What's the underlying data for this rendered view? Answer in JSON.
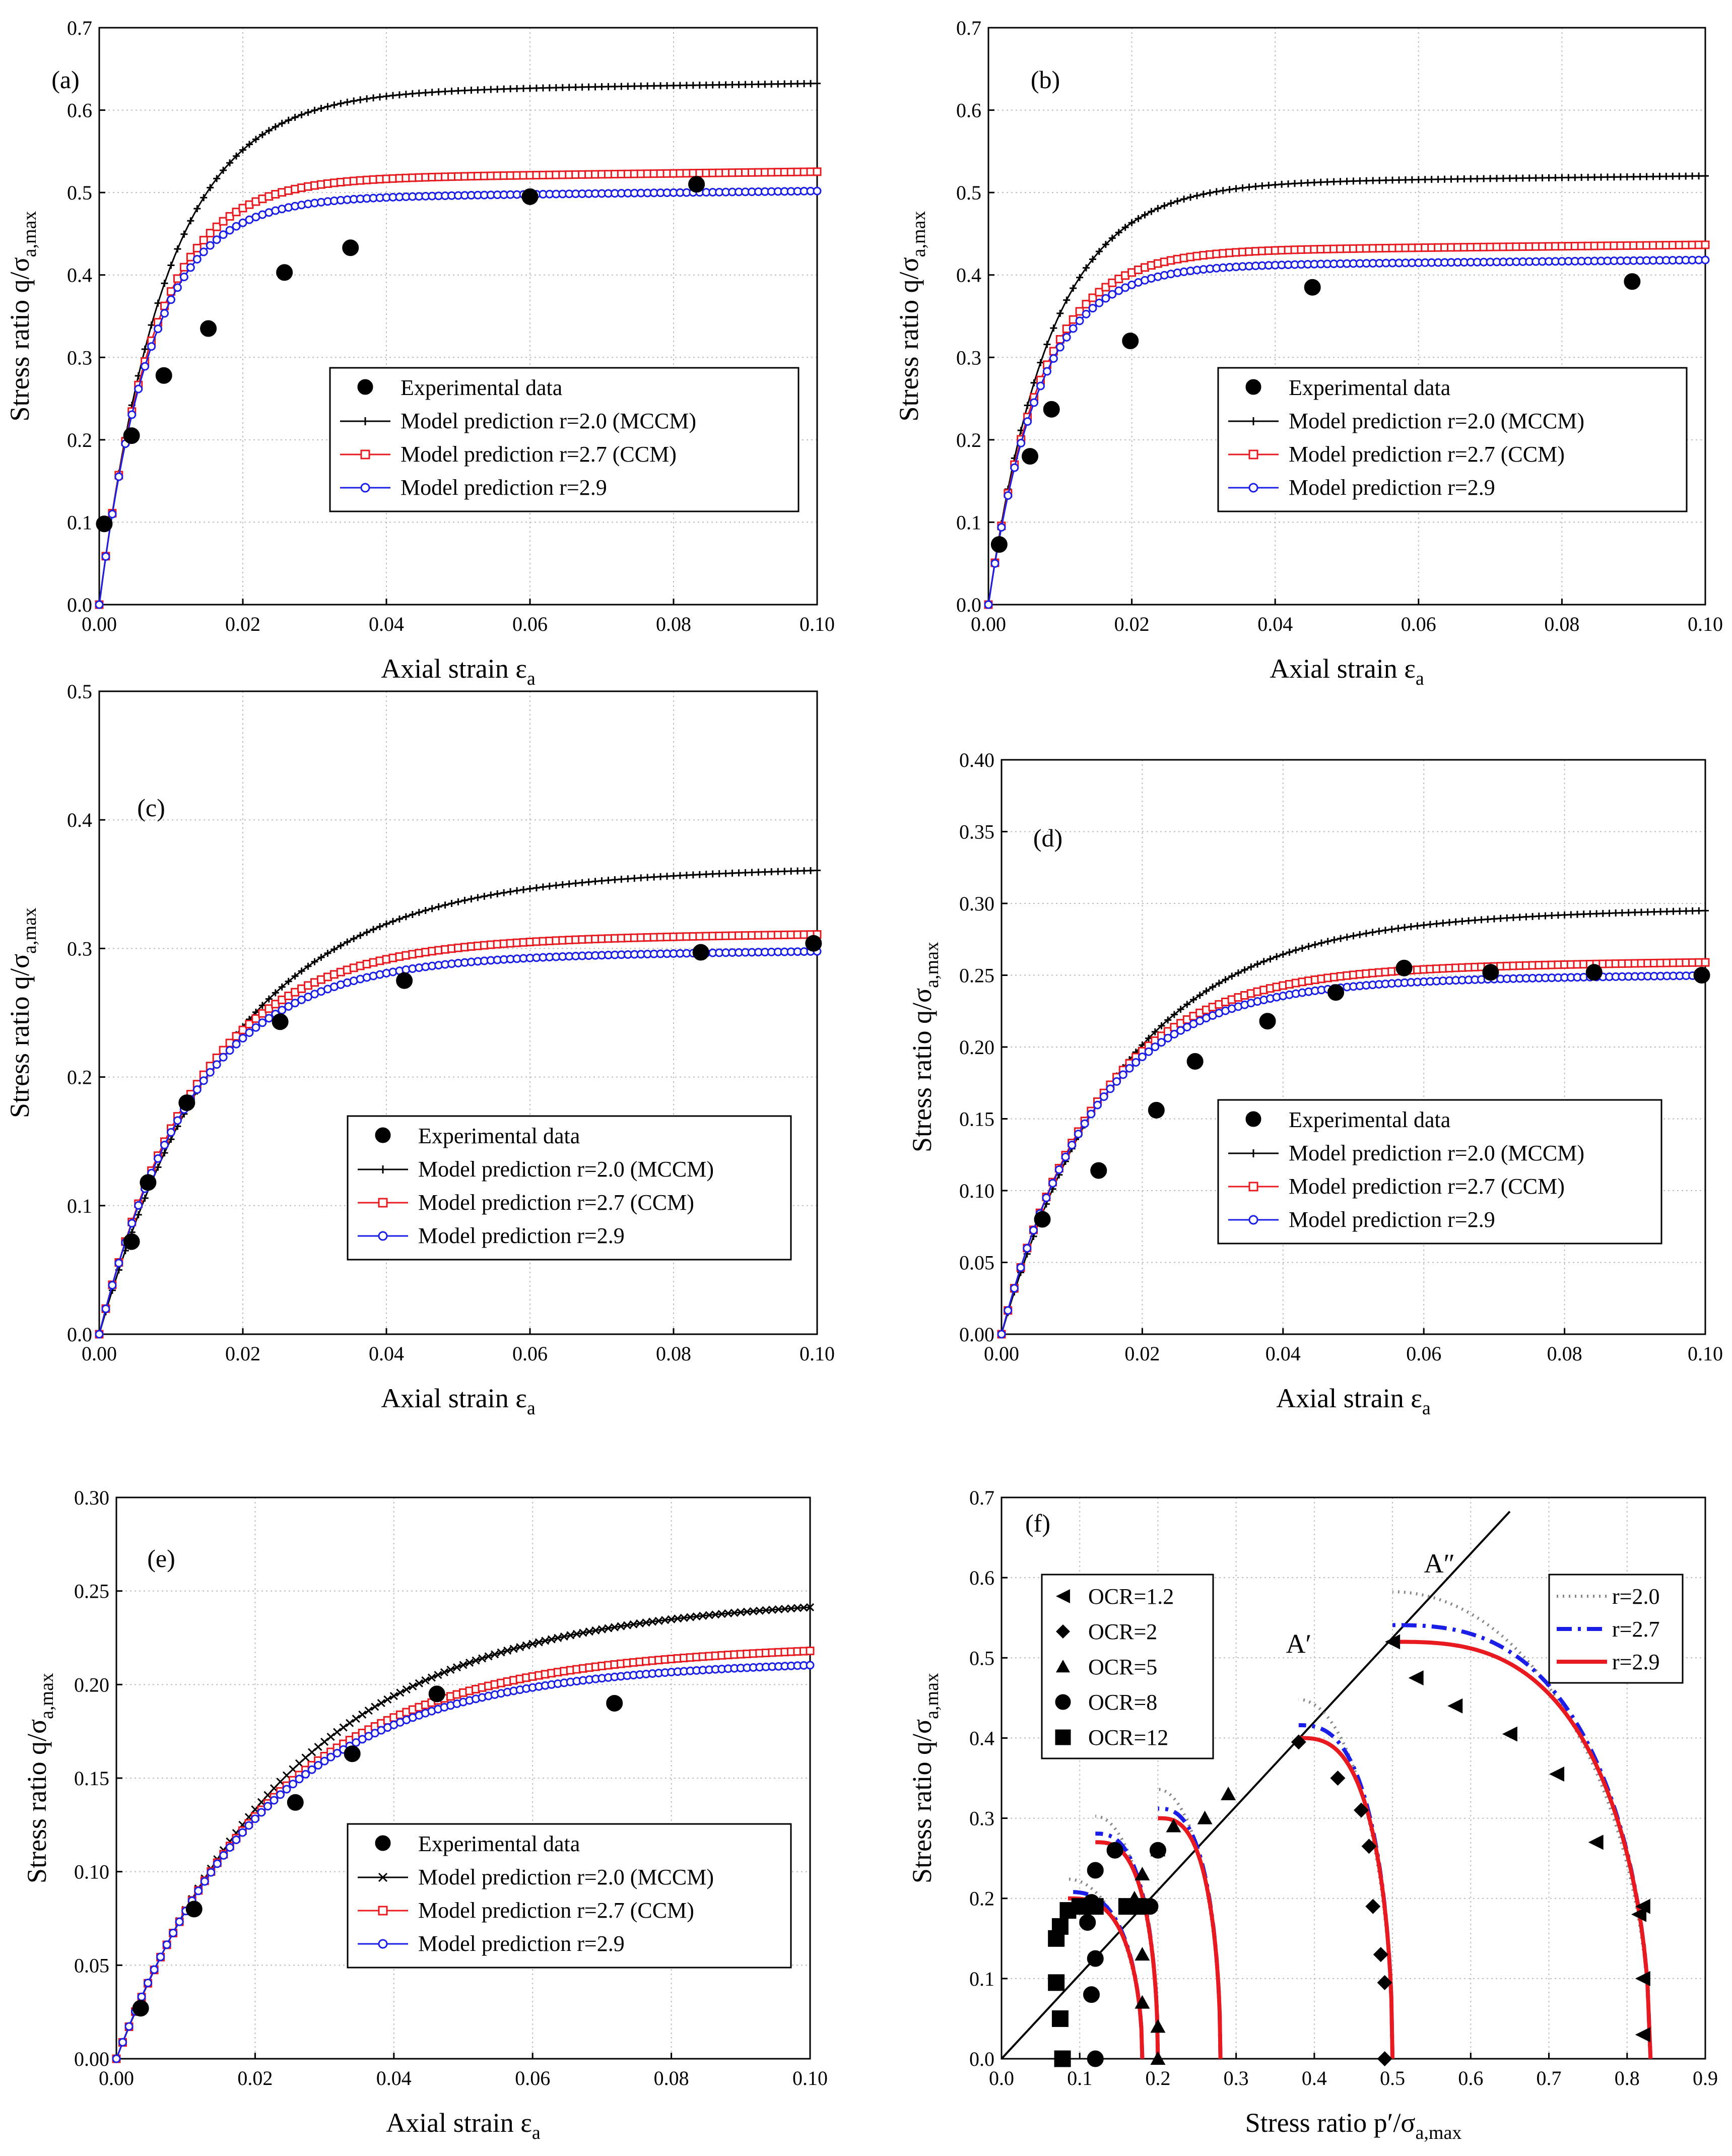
{
  "chart_data": [
    {
      "id": "a",
      "type": "line",
      "panel_label": "(a)",
      "xlabel": "Axial strain ε",
      "xlabel_sub": "a",
      "ylabel": "Stress ratio q/σ",
      "ylabel_sub": "a,max",
      "xlim": [
        0,
        0.1
      ],
      "ylim": [
        0,
        0.7
      ],
      "xticks": [
        0,
        0.02,
        0.04,
        0.06,
        0.08,
        0.1
      ],
      "xtick_labels": [
        "0.00",
        "0.02",
        "0.04",
        "0.06",
        "0.08",
        "0.10"
      ],
      "yticks": [
        0,
        0.1,
        0.2,
        0.3,
        0.4,
        0.5,
        0.6,
        0.7
      ],
      "ytick_labels": [
        "0.0",
        "0.1",
        "0.2",
        "0.3",
        "0.4",
        "0.5",
        "0.6",
        "0.7"
      ],
      "legend_position": "center-right",
      "experimental": {
        "name": "Experimental data",
        "x": [
          0.0007,
          0.0045,
          0.009,
          0.0152,
          0.0258,
          0.035,
          0.06,
          0.0832
        ],
        "y": [
          0.098,
          0.205,
          0.278,
          0.335,
          0.403,
          0.433,
          0.495,
          0.51
        ]
      },
      "series": [
        {
          "name": "Model prediction r=2.0 (MCCM)",
          "color": "#000000",
          "marker": "plus",
          "end": 0.62,
          "x0": 0.0092
        },
        {
          "name": "Model prediction r=2.7 (CCM)",
          "color": "#e8191f",
          "marker": "square",
          "end": 0.515,
          "x0": 0.0075
        },
        {
          "name": "Model prediction r=2.9",
          "color": "#1a1ee6",
          "marker": "circle",
          "end": 0.492,
          "x0": 0.0072
        }
      ]
    },
    {
      "id": "b",
      "type": "line",
      "panel_label": "(b)",
      "xlabel": "Axial strain ε",
      "xlabel_sub": "a",
      "ylabel": "Stress ratio q/σ",
      "ylabel_sub": "a,max",
      "xlim": [
        0,
        0.1
      ],
      "ylim": [
        0,
        0.7
      ],
      "xticks": [
        0,
        0.02,
        0.04,
        0.06,
        0.08,
        0.1
      ],
      "xtick_labels": [
        "0.00",
        "0.02",
        "0.04",
        "0.06",
        "0.08",
        "0.10"
      ],
      "yticks": [
        0,
        0.1,
        0.2,
        0.3,
        0.4,
        0.5,
        0.6,
        0.7
      ],
      "ytick_labels": [
        "0.0",
        "0.1",
        "0.2",
        "0.3",
        "0.4",
        "0.5",
        "0.6",
        "0.7"
      ],
      "legend_position": "center-right",
      "experimental": {
        "name": "Experimental data",
        "x": [
          0.0015,
          0.0058,
          0.0088,
          0.0198,
          0.0452,
          0.0898
        ],
        "y": [
          0.073,
          0.18,
          0.237,
          0.32,
          0.385,
          0.392
        ]
      },
      "series": [
        {
          "name": "Model prediction r=2.0 (MCCM)",
          "color": "#000000",
          "marker": "plus",
          "end": 0.51,
          "x0": 0.0085
        },
        {
          "name": "Model prediction r=2.7 (CCM)",
          "color": "#e8191f",
          "marker": "square",
          "end": 0.428,
          "x0": 0.0072
        },
        {
          "name": "Model prediction r=2.9",
          "color": "#1a1ee6",
          "marker": "circle",
          "end": 0.41,
          "x0": 0.007
        }
      ]
    },
    {
      "id": "c",
      "type": "line",
      "panel_label": "(c)",
      "xlabel": "Axial strain ε",
      "xlabel_sub": "a",
      "ylabel": "Stress ratio q/σ",
      "ylabel_sub": "a,max",
      "xlim": [
        0,
        0.1
      ],
      "ylim": [
        0,
        0.5
      ],
      "xticks": [
        0,
        0.02,
        0.04,
        0.06,
        0.08,
        0.1
      ],
      "xtick_labels": [
        "0.00",
        "0.02",
        "0.04",
        "0.06",
        "0.08",
        "0.10"
      ],
      "yticks": [
        0,
        0.1,
        0.2,
        0.3,
        0.4,
        0.5
      ],
      "ytick_labels": [
        "0.0",
        "0.1",
        "0.2",
        "0.3",
        "0.4",
        "0.5"
      ],
      "legend_position": "lower-right",
      "experimental": {
        "name": "Experimental data",
        "x": [
          0.0045,
          0.0068,
          0.0122,
          0.0252,
          0.0425,
          0.0838,
          0.0995
        ],
        "y": [
          0.072,
          0.118,
          0.18,
          0.243,
          0.275,
          0.297,
          0.304
        ]
      },
      "series": [
        {
          "name": "Model prediction r=2.0 (MCCM)",
          "color": "#000000",
          "marker": "plus",
          "end": 0.355,
          "x0": 0.018
        },
        {
          "name": "Model prediction r=2.7 (CCM)",
          "color": "#e8191f",
          "marker": "square",
          "end": 0.305,
          "x0": 0.0135
        },
        {
          "name": "Model prediction r=2.9",
          "color": "#1a1ee6",
          "marker": "circle",
          "end": 0.292,
          "x0": 0.013
        }
      ]
    },
    {
      "id": "d",
      "type": "line",
      "panel_label": "(d)",
      "xlabel": "Axial strain ε",
      "xlabel_sub": "a",
      "ylabel": "Stress ratio q/σ",
      "ylabel_sub": "a,max",
      "xlim": [
        0,
        0.1
      ],
      "ylim": [
        0,
        0.4
      ],
      "xticks": [
        0,
        0.02,
        0.04,
        0.06,
        0.08,
        0.1
      ],
      "xtick_labels": [
        "0.00",
        "0.02",
        "0.04",
        "0.06",
        "0.08",
        "0.10"
      ],
      "yticks": [
        0,
        0.05,
        0.1,
        0.15,
        0.2,
        0.25,
        0.3,
        0.35,
        0.4
      ],
      "ytick_labels": [
        "0.00",
        "0.05",
        "0.10",
        "0.15",
        "0.20",
        "0.25",
        "0.30",
        "0.35",
        "0.40"
      ],
      "legend_position": "lower-right",
      "experimental": {
        "name": "Experimental data",
        "x": [
          0.0058,
          0.0138,
          0.022,
          0.0275,
          0.0378,
          0.0475,
          0.0572,
          0.0695,
          0.0842,
          0.0995
        ],
        "y": [
          0.08,
          0.114,
          0.156,
          0.19,
          0.218,
          0.238,
          0.255,
          0.252,
          0.252,
          0.25
        ]
      },
      "series": [
        {
          "name": "Model prediction r=2.0 (MCCM)",
          "color": "#000000",
          "marker": "plus",
          "end": 0.29,
          "x0": 0.017
        },
        {
          "name": "Model prediction r=2.7 (CCM)",
          "color": "#e8191f",
          "marker": "square",
          "end": 0.254,
          "x0": 0.0135
        },
        {
          "name": "Model prediction r=2.9",
          "color": "#1a1ee6",
          "marker": "circle",
          "end": 0.245,
          "x0": 0.013
        }
      ]
    },
    {
      "id": "e",
      "type": "line",
      "panel_label": "(e)",
      "xlabel": "Axial strain ε",
      "xlabel_sub": "a",
      "ylabel": "Stress ratio q/σ",
      "ylabel_sub": "a,max",
      "xlim": [
        0,
        0.1
      ],
      "ylim": [
        0,
        0.3
      ],
      "xticks": [
        0,
        0.02,
        0.04,
        0.06,
        0.08,
        0.1
      ],
      "xtick_labels": [
        "0.00",
        "0.02",
        "0.04",
        "0.06",
        "0.08",
        "0.10"
      ],
      "yticks": [
        0,
        0.05,
        0.1,
        0.15,
        0.2,
        0.25,
        0.3
      ],
      "ytick_labels": [
        "0.00",
        "0.05",
        "0.10",
        "0.15",
        "0.20",
        "0.25",
        "0.30"
      ],
      "legend_position": "lower-right",
      "experimental": {
        "name": "Experimental data",
        "x": [
          0.0035,
          0.0112,
          0.0258,
          0.034,
          0.0462,
          0.0718
        ],
        "y": [
          0.027,
          0.08,
          0.137,
          0.163,
          0.195,
          0.19
        ]
      },
      "series": [
        {
          "name": "Model prediction r=2.0 (MCCM)",
          "color": "#000000",
          "marker": "cross",
          "end": 0.241,
          "x0": 0.025
        },
        {
          "name": "Model prediction r=2.7 (CCM)",
          "color": "#e8191f",
          "marker": "square",
          "end": 0.216,
          "x0": 0.022
        },
        {
          "name": "Model prediction r=2.9",
          "color": "#1a1ee6",
          "marker": "circle",
          "end": 0.208,
          "x0": 0.021
        }
      ]
    },
    {
      "id": "f",
      "type": "scatter+line",
      "panel_label": "(f)",
      "xlabel": "Stress ratio p′/σ",
      "xlabel_sub": "a,max",
      "ylabel": "Stress ratio q/σ",
      "ylabel_sub": "a,max",
      "xlim": [
        0,
        0.9
      ],
      "ylim": [
        0,
        0.7
      ],
      "xticks": [
        0,
        0.1,
        0.2,
        0.3,
        0.4,
        0.5,
        0.6,
        0.7,
        0.8,
        0.9
      ],
      "xtick_labels": [
        "0.0",
        "0.1",
        "0.2",
        "0.3",
        "0.4",
        "0.5",
        "0.6",
        "0.7",
        "0.8",
        "0.9"
      ],
      "yticks": [
        0,
        0.1,
        0.2,
        0.3,
        0.4,
        0.5,
        0.6,
        0.7
      ],
      "ytick_labels": [
        "0.0",
        "0.1",
        "0.2",
        "0.3",
        "0.4",
        "0.5",
        "0.6",
        "0.7"
      ],
      "annotations": [
        {
          "text": "A′",
          "x": 0.38,
          "y": 0.5
        },
        {
          "text": "A″",
          "x": 0.56,
          "y": 0.6
        }
      ],
      "critical_state_line": {
        "slope": 1.05,
        "x": [
          0,
          0.65
        ]
      },
      "experimental": [
        {
          "name": "OCR=1.2",
          "marker": "triangle-left",
          "x": [
            0.82,
            0.82,
            0.82,
            0.815,
            0.76,
            0.71,
            0.65,
            0.58,
            0.53,
            0.5
          ],
          "y": [
            0.03,
            0.1,
            0.19,
            0.18,
            0.27,
            0.355,
            0.405,
            0.44,
            0.475,
            0.52
          ]
        },
        {
          "name": "OCR=2",
          "marker": "diamond",
          "x": [
            0.49,
            0.49,
            0.485,
            0.475,
            0.47,
            0.46,
            0.43,
            0.38
          ],
          "y": [
            0.0,
            0.095,
            0.13,
            0.19,
            0.265,
            0.31,
            0.35,
            0.395
          ]
        },
        {
          "name": "OCR=5",
          "marker": "triangle-up",
          "x": [
            0.2,
            0.2,
            0.18,
            0.18,
            0.17,
            0.18,
            0.2,
            0.22,
            0.26,
            0.29
          ],
          "y": [
            0.0,
            0.04,
            0.07,
            0.13,
            0.2,
            0.23,
            0.26,
            0.29,
            0.3,
            0.33
          ]
        },
        {
          "name": "OCR=8",
          "marker": "circle",
          "x": [
            0.12,
            0.115,
            0.12,
            0.11,
            0.115,
            0.12,
            0.145,
            0.19,
            0.2
          ],
          "y": [
            0.0,
            0.08,
            0.125,
            0.17,
            0.195,
            0.235,
            0.26,
            0.19,
            0.26
          ]
        },
        {
          "name": "OCR=12",
          "marker": "square",
          "x": [
            0.078,
            0.075,
            0.07,
            0.07,
            0.075,
            0.085,
            0.1,
            0.12,
            0.16,
            0.175
          ],
          "y": [
            0.0,
            0.05,
            0.095,
            0.15,
            0.165,
            0.185,
            0.19,
            0.19,
            0.19,
            0.19
          ]
        }
      ],
      "series": [
        {
          "name": "r=2.0",
          "color": "#888888",
          "style": "dotted"
        },
        {
          "name": "r=2.7",
          "color": "#1a1ee6",
          "style": "dashdot"
        },
        {
          "name": "r=2.9",
          "color": "#e8191f",
          "style": "solid"
        }
      ]
    }
  ]
}
